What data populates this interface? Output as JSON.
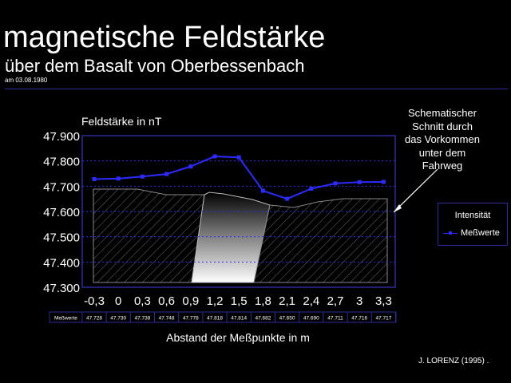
{
  "header": {
    "title": "magnetische Feldstärke",
    "subtitle": "über dem Basalt von Oberbessenbach",
    "date": "am 03.08.1980"
  },
  "annotation": {
    "lines": [
      "Schematischer",
      "Schnitt durch",
      "das Vorkommen",
      "unter dem",
      "Fahrweg"
    ]
  },
  "legend": {
    "title": "Intensität",
    "item": "Meßwerte"
  },
  "credit": "J. LORENZ (1995) .",
  "colors": {
    "axis": "#2b2b9a",
    "series": "#2b2bff",
    "hatch": "#555555",
    "background": "#000000"
  },
  "chart_data": {
    "type": "line",
    "title": "",
    "ylabel": "Feldstärke in nT",
    "xlabel": "Abstand der Meßpunkte in m",
    "ylim": [
      47300,
      47900
    ],
    "yticks": [
      "47.300",
      "47.400",
      "47.500",
      "47.600",
      "47.700",
      "47.800",
      "47.900"
    ],
    "grid": "dotted horizontal",
    "legend_position": "right",
    "categories": [
      "-0,3",
      "0",
      "0,3",
      "0,6",
      "0,9",
      "1,2",
      "1,5",
      "1,8",
      "2,1",
      "2,4",
      "2,7",
      "3",
      "3,3"
    ],
    "series": [
      {
        "name": "Meßwerte",
        "values": [
          47728,
          47730,
          47738,
          47748,
          47778,
          47818,
          47814,
          47682,
          47650,
          47690,
          47711,
          47716,
          47717
        ]
      }
    ],
    "table": {
      "row_label": "Meßwerte",
      "cells": [
        "47.728",
        "47.730",
        "47.738",
        "47.748",
        "47.778",
        "47.818",
        "47.814",
        "47.682",
        "47.650",
        "47.690",
        "47.711",
        "47.716",
        "47.717"
      ]
    }
  }
}
